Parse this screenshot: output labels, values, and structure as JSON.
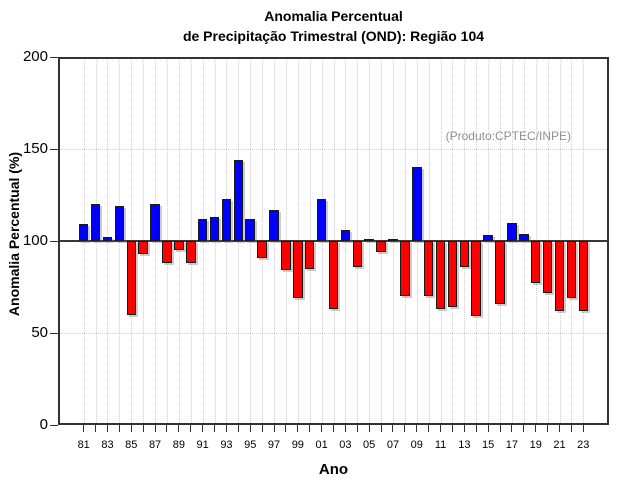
{
  "page": {
    "background": "#ffffff"
  },
  "chart_data": {
    "type": "bar",
    "title_line1": "Anomalia Percentual",
    "title_line2": "de Precipitação Trimestral (OND): Região 104",
    "annotation": "(Produto:CPTEC/INPE)",
    "xlabel": "Ano",
    "ylabel": "Anomalia Percentual (%)",
    "ylim": [
      0,
      200
    ],
    "yticks": [
      0,
      50,
      100,
      150,
      200
    ],
    "ytick_labels": [
      "0",
      "50",
      "100",
      "150",
      "200"
    ],
    "xtick_labels_visible": [
      "81",
      "83",
      "85",
      "87",
      "89",
      "91",
      "93",
      "95",
      "97",
      "99",
      "01",
      "03",
      "05",
      "07",
      "09",
      "11",
      "13",
      "15",
      "17",
      "19",
      "21",
      "23"
    ],
    "baseline": 100,
    "grid": "dotted vertical line at every year, dotted horizontal at 50 and 150, solid reference line at 100",
    "legend_position": "none",
    "colors": {
      "above_baseline": "#0000ff",
      "below_baseline": "#ff0000",
      "bar_outline": "#1a1a1a",
      "reference_line": "#383838",
      "annotation_text": "#8f8f8f"
    },
    "years": [
      1981,
      1982,
      1983,
      1984,
      1985,
      1986,
      1987,
      1988,
      1989,
      1990,
      1991,
      1992,
      1993,
      1994,
      1995,
      1996,
      1997,
      1998,
      1999,
      2000,
      2001,
      2002,
      2003,
      2004,
      2005,
      2006,
      2007,
      2008,
      2009,
      2010,
      2011,
      2012,
      2013,
      2014,
      2015,
      2016,
      2017,
      2018,
      2019,
      2020,
      2021,
      2022,
      2023
    ],
    "values": [
      109,
      120,
      102,
      119,
      60,
      93,
      120,
      88,
      95,
      88,
      112,
      113,
      123,
      144,
      112,
      91,
      117,
      84,
      69,
      85,
      123,
      63,
      106,
      86,
      101,
      94,
      101,
      70,
      140,
      70,
      63,
      64,
      86,
      59,
      103,
      66,
      110,
      104,
      77,
      72,
      62,
      69,
      62
    ]
  }
}
